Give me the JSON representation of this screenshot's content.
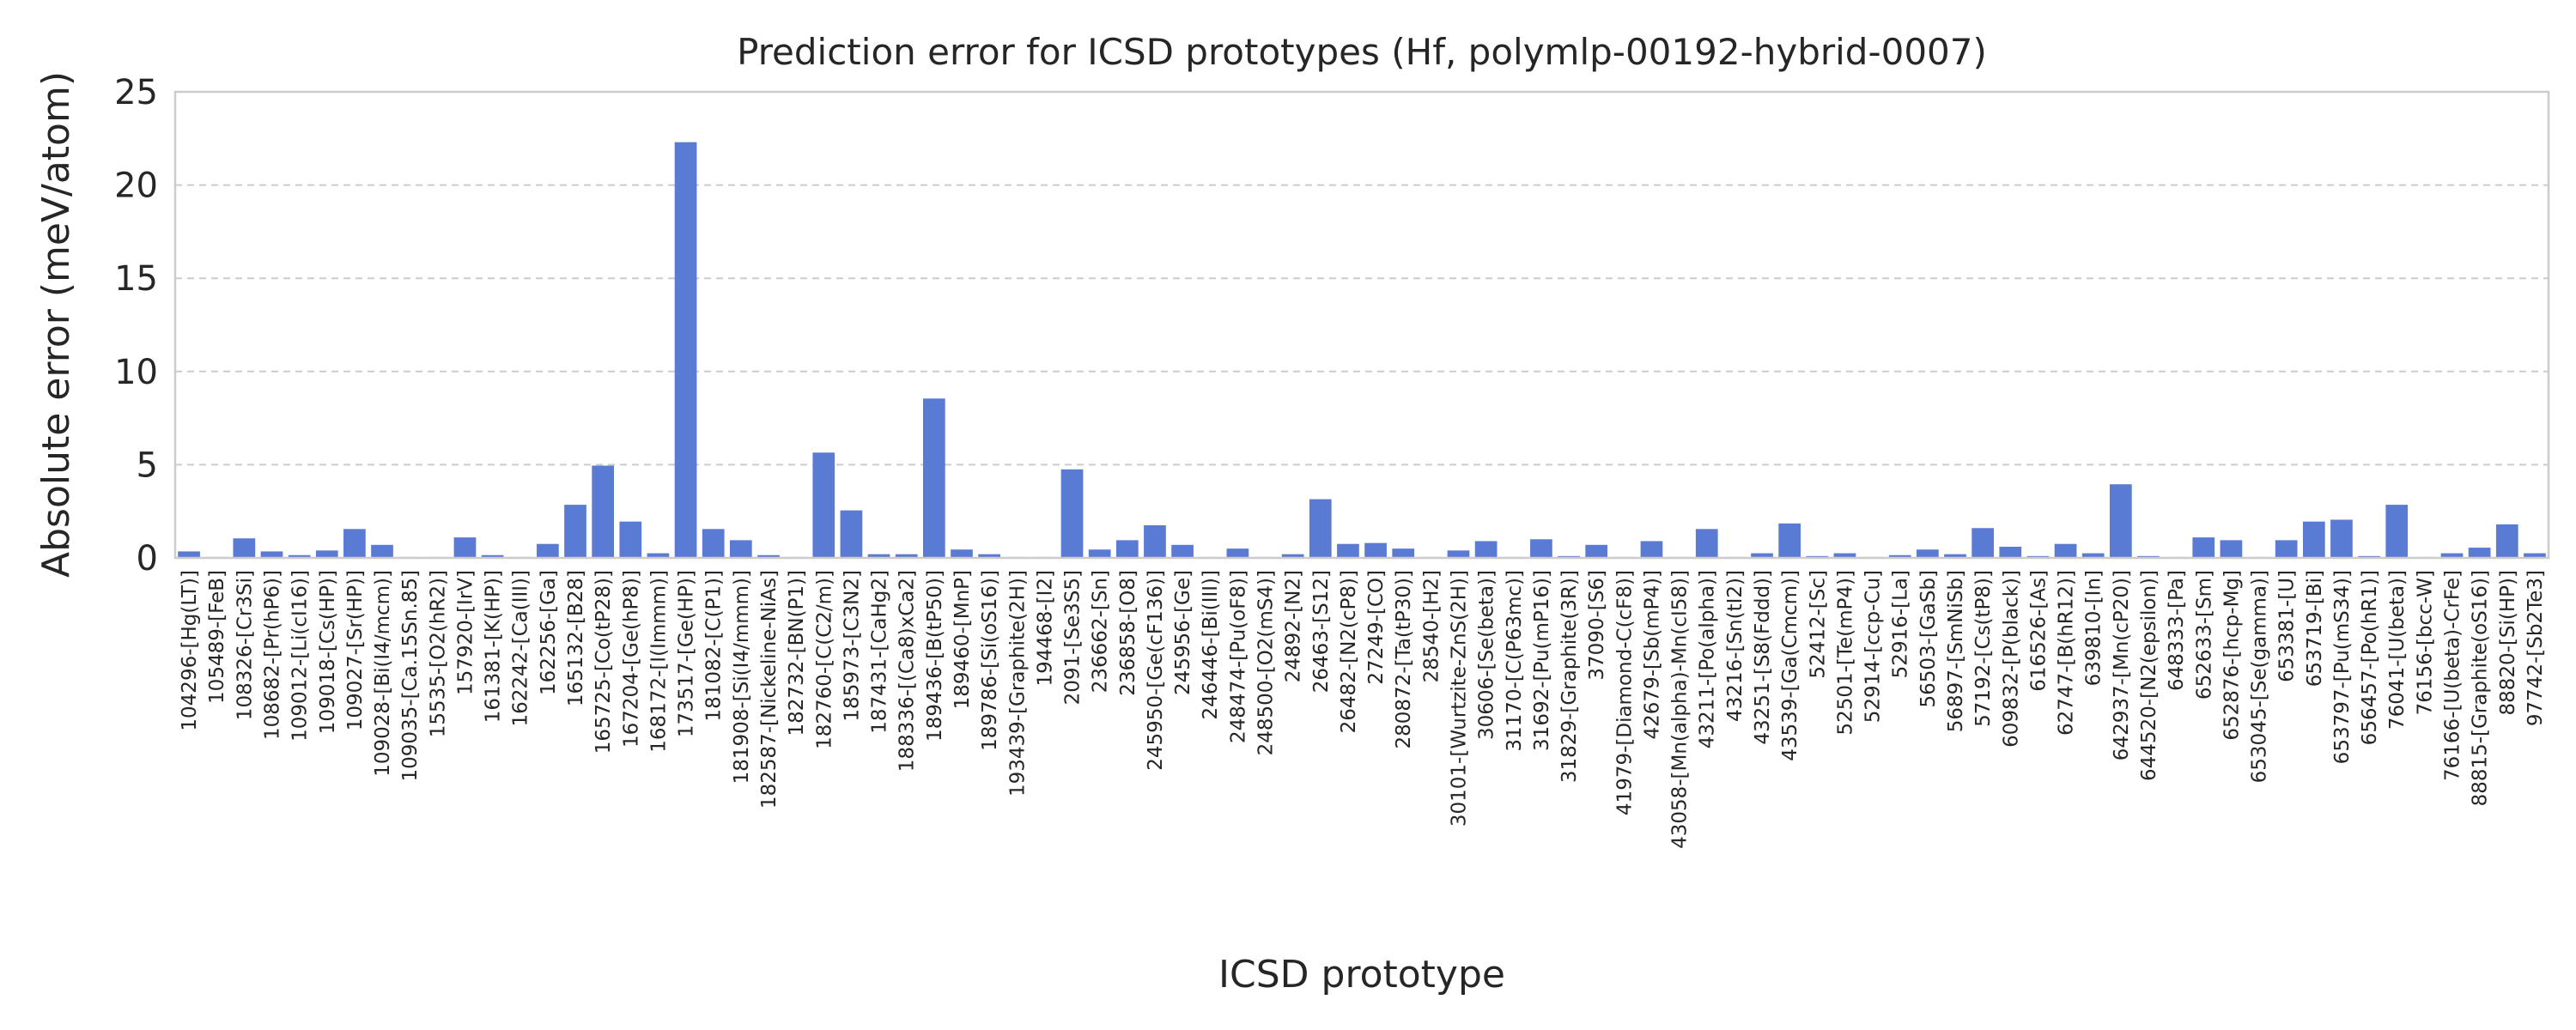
{
  "chart_data": {
    "type": "bar",
    "title": "Prediction error for ICSD prototypes (Hf, polymlp-00192-hybrid-0007)",
    "xlabel": "ICSD prototype",
    "ylabel": "Absolute error (meV/atom)",
    "ylim": [
      0,
      25
    ],
    "yticks": [
      0,
      5,
      10,
      15,
      20,
      25
    ],
    "grid": "horizontal dashed",
    "bar_color": "#5a7bd4",
    "categories": [
      "104296-[Hg(LT)]",
      "105489-[FeB]",
      "108326-[Cr3Si]",
      "108682-[Pr(hP6)]",
      "109012-[Li(cI16)]",
      "109018-[Cs(HP)]",
      "109027-[Sr(HP)]",
      "109028-[Bi(I4/mcm)]",
      "109035-[Ca.15Sn.85]",
      "15535-[O2(hR2)]",
      "157920-[IrV]",
      "161381-[K(HP)]",
      "162242-[Ca(III)]",
      "162256-[Ga]",
      "165132-[B28]",
      "165725-[Co(tP28)]",
      "167204-[Ge(hP8)]",
      "168172-[I(Immm)]",
      "173517-[Ge(HP)]",
      "181082-[C(P1)]",
      "181908-[Si(I4/mmm)]",
      "182587-[Nickeline-NiAs]",
      "182732-[BN(P1)]",
      "182760-[C(C2/m)]",
      "185973-[C3N2]",
      "187431-[CaHg2]",
      "188336-[(Ca8)xCa2]",
      "189436-[B(tP50)]",
      "189460-[MnP]",
      "189786-[Si(oS16)]",
      "193439-[Graphite(2H)]",
      "194468-[I2]",
      "2091-[Se3S5]",
      "236662-[Sn]",
      "236858-[O8]",
      "245950-[Ge(cF136)]",
      "245956-[Ge]",
      "246446-[Bi(III)]",
      "248474-[Pu(oF8)]",
      "248500-[O2(mS4)]",
      "24892-[N2]",
      "26463-[S12]",
      "26482-[N2(cP8)]",
      "27249-[CO]",
      "280872-[Ta(tP30)]",
      "28540-[H2]",
      "30101-[Wurtzite-ZnS(2H)]",
      "30606-[Se(beta)]",
      "31170-[C(P63mc)]",
      "31692-[Pu(mP16)]",
      "31829-[Graphite(3R)]",
      "37090-[S6]",
      "41979-[Diamond-C(cF8)]",
      "42679-[Sb(mP4)]",
      "43058-[Mn(alpha)-Mn(cI58)]",
      "43211-[Po(alpha)]",
      "43216-[Sn(tI2)]",
      "43251-[S8(Fddd)]",
      "43539-[Ga(Cmcm)]",
      "52412-[Sc]",
      "52501-[Te(mP4)]",
      "52914-[ccp-Cu]",
      "52916-[La]",
      "56503-[GaSb]",
      "56897-[SmNiSb]",
      "57192-[Cs(tP8)]",
      "609832-[P(black)]",
      "616526-[As]",
      "62747-[B(hR12)]",
      "639810-[In]",
      "642937-[Mn(cP20)]",
      "644520-[N2(epsilon)]",
      "648333-[Pa]",
      "652633-[Sm]",
      "652876-[hcp-Mg]",
      "653045-[Se(gamma)]",
      "653381-[U]",
      "653719-[Bi]",
      "653797-[Pu(mS34)]",
      "656457-[Po(hR1)]",
      "76041-[U(beta)]",
      "76156-[bcc-W]",
      "76166-[U(beta)-CrFe]",
      "88815-[Graphite(oS16)]",
      "88820-[Si(HP)]",
      "97742-[Sb2Te3]"
    ],
    "values": [
      0.35,
      0.05,
      1.05,
      0.35,
      0.15,
      0.4,
      1.55,
      0.7,
      0.05,
      0.05,
      1.1,
      0.15,
      0.05,
      0.75,
      2.85,
      4.95,
      1.95,
      0.25,
      22.3,
      1.55,
      0.95,
      0.15,
      0.05,
      5.65,
      2.55,
      0.2,
      0.2,
      8.55,
      0.45,
      0.2,
      0.05,
      0.05,
      4.75,
      0.45,
      0.95,
      1.75,
      0.7,
      0.05,
      0.5,
      0.05,
      0.2,
      3.15,
      0.75,
      0.8,
      0.5,
      0.05,
      0.4,
      0.9,
      0.05,
      1.0,
      0.1,
      0.7,
      0.05,
      0.9,
      0.05,
      1.55,
      0.05,
      0.25,
      1.85,
      0.1,
      0.25,
      0.05,
      0.15,
      0.45,
      0.2,
      1.6,
      0.6,
      0.1,
      0.75,
      0.25,
      3.95,
      0.1,
      0.05,
      1.1,
      0.95,
      0.05,
      0.95,
      1.95,
      2.05,
      0.1,
      2.85,
      0.05,
      0.25,
      0.55,
      1.8,
      0.25
    ]
  }
}
